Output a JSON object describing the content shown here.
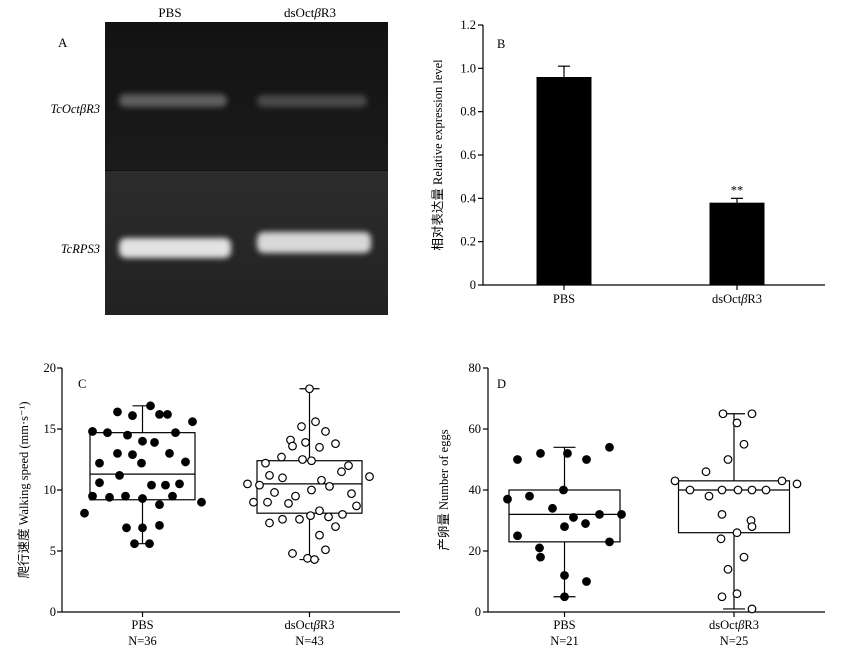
{
  "panel_a": {
    "label": "A",
    "lanes": [
      "PBS",
      "dsOctβR3"
    ],
    "genes": [
      "TcOctβR3",
      "TcRPS3"
    ]
  },
  "chart_data": [
    {
      "panel_label": "B",
      "type": "bar",
      "categories": [
        "PBS",
        "dsOctβR3"
      ],
      "values": [
        0.96,
        0.38
      ],
      "errors": [
        0.05,
        0.02
      ],
      "ylabel": "相对表达量 Relative expression level",
      "ylim": [
        0,
        1.2
      ],
      "yticks": [
        0,
        0.2,
        0.4,
        0.6,
        0.8,
        1.0,
        1.2
      ],
      "yticklabels": [
        "0",
        "0.2",
        "0.4",
        "0.6",
        "0.8",
        "1.0",
        "1.2"
      ],
      "annotations": [
        {
          "category_index": 1,
          "text": "**"
        }
      ],
      "bar_color": "#000000",
      "grid": false
    },
    {
      "panel_label": "C",
      "type": "box",
      "categories": [
        "PBS",
        "dsOctβR3"
      ],
      "n_labels": [
        "N=36",
        "N=43"
      ],
      "ylabel": "爬行速度 Walking speed (mm·s⁻¹)",
      "ylim": [
        0,
        20
      ],
      "yticks": [
        0,
        5,
        10,
        15,
        20
      ],
      "yticklabels": [
        "0",
        "5",
        "10",
        "15",
        "20"
      ],
      "grid": false,
      "series": [
        {
          "marker_fill": "#000000",
          "box": {
            "min": 5.6,
            "q1": 9.2,
            "median": 11.3,
            "q3": 14.7,
            "max": 16.9
          },
          "values": [
            8.1,
            14.8,
            14.7,
            16.4,
            16.1,
            16.9,
            16.2,
            16.2,
            15.6,
            14.7,
            14.0,
            13.9,
            13.0,
            13.0,
            12.2,
            12.2,
            12.3,
            10.6,
            10.4,
            10.4,
            10.5,
            9.5,
            9.4,
            9.5,
            9.3,
            9.5,
            9.0,
            8.8,
            6.9,
            6.9,
            7.1,
            5.6,
            5.6,
            11.2,
            12.9,
            14.5
          ]
        },
        {
          "marker_fill": "#ffffff",
          "box": {
            "min": 4.3,
            "q1": 8.1,
            "median": 10.5,
            "q3": 12.4,
            "max": 18.3
          },
          "values": [
            18.3,
            15.6,
            15.2,
            14.8,
            14.1,
            13.9,
            13.6,
            13.5,
            13.8,
            12.7,
            12.5,
            12.4,
            12.2,
            12.0,
            11.5,
            11.2,
            11.1,
            11.0,
            10.8,
            10.5,
            10.4,
            10.3,
            9.8,
            9.7,
            9.5,
            9.0,
            9.0,
            8.9,
            8.7,
            8.3,
            8.0,
            7.9,
            7.8,
            7.6,
            7.6,
            7.3,
            7.0,
            6.3,
            5.1,
            4.8,
            4.4,
            4.3,
            10.0
          ]
        }
      ]
    },
    {
      "panel_label": "D",
      "type": "box",
      "categories": [
        "PBS",
        "dsOctβR3"
      ],
      "n_labels": [
        "N=21",
        "N=25"
      ],
      "ylabel": "产卵量 Number of eggs",
      "ylim": [
        0,
        80
      ],
      "yticks": [
        0,
        20,
        40,
        60,
        80
      ],
      "yticklabels": [
        "0",
        "20",
        "40",
        "60",
        "80"
      ],
      "grid": false,
      "series": [
        {
          "marker_fill": "#000000",
          "box": {
            "min": 5,
            "q1": 23,
            "median": 32,
            "q3": 40,
            "max": 54
          },
          "values": [
            54,
            52,
            52,
            50,
            50,
            40,
            38,
            37,
            34,
            32,
            32,
            31,
            29,
            28,
            25,
            23,
            21,
            18,
            12,
            10,
            5
          ]
        },
        {
          "marker_fill": "#ffffff",
          "box": {
            "min": 1,
            "q1": 26,
            "median": 40,
            "q3": 43,
            "max": 65
          },
          "values": [
            65,
            65,
            62,
            55,
            50,
            46,
            43,
            43,
            42,
            40,
            40,
            40,
            40,
            40,
            38,
            32,
            30,
            28,
            26,
            24,
            18,
            14,
            6,
            5,
            1
          ]
        }
      ]
    }
  ]
}
